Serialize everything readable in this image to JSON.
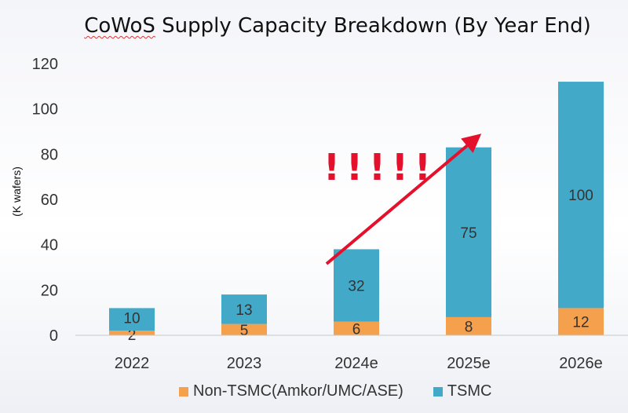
{
  "chart_data": {
    "type": "bar",
    "stacked": true,
    "title_pre": "CoWoS",
    "title_post": " Supply Capacity Breakdown (By Year End)",
    "ylabel": "(K wafers)",
    "ylim": [
      0,
      120
    ],
    "yticks": [
      0,
      20,
      40,
      60,
      80,
      100,
      120
    ],
    "categories": [
      "2022",
      "2023",
      "2024e",
      "2025e",
      "2026e"
    ],
    "series": [
      {
        "name": "Non-TSMC(Amkor/UMC/ASE)",
        "color": "#f5a04d",
        "values": [
          2,
          5,
          6,
          8,
          12
        ]
      },
      {
        "name": "TSMC",
        "color": "#43a9c8",
        "values": [
          10,
          13,
          32,
          75,
          100
        ]
      }
    ],
    "annotation": "!!!!!",
    "annotation_color": "#e5102c",
    "arrow_color": "#e5102c",
    "grid": false,
    "legend_position": "bottom"
  }
}
